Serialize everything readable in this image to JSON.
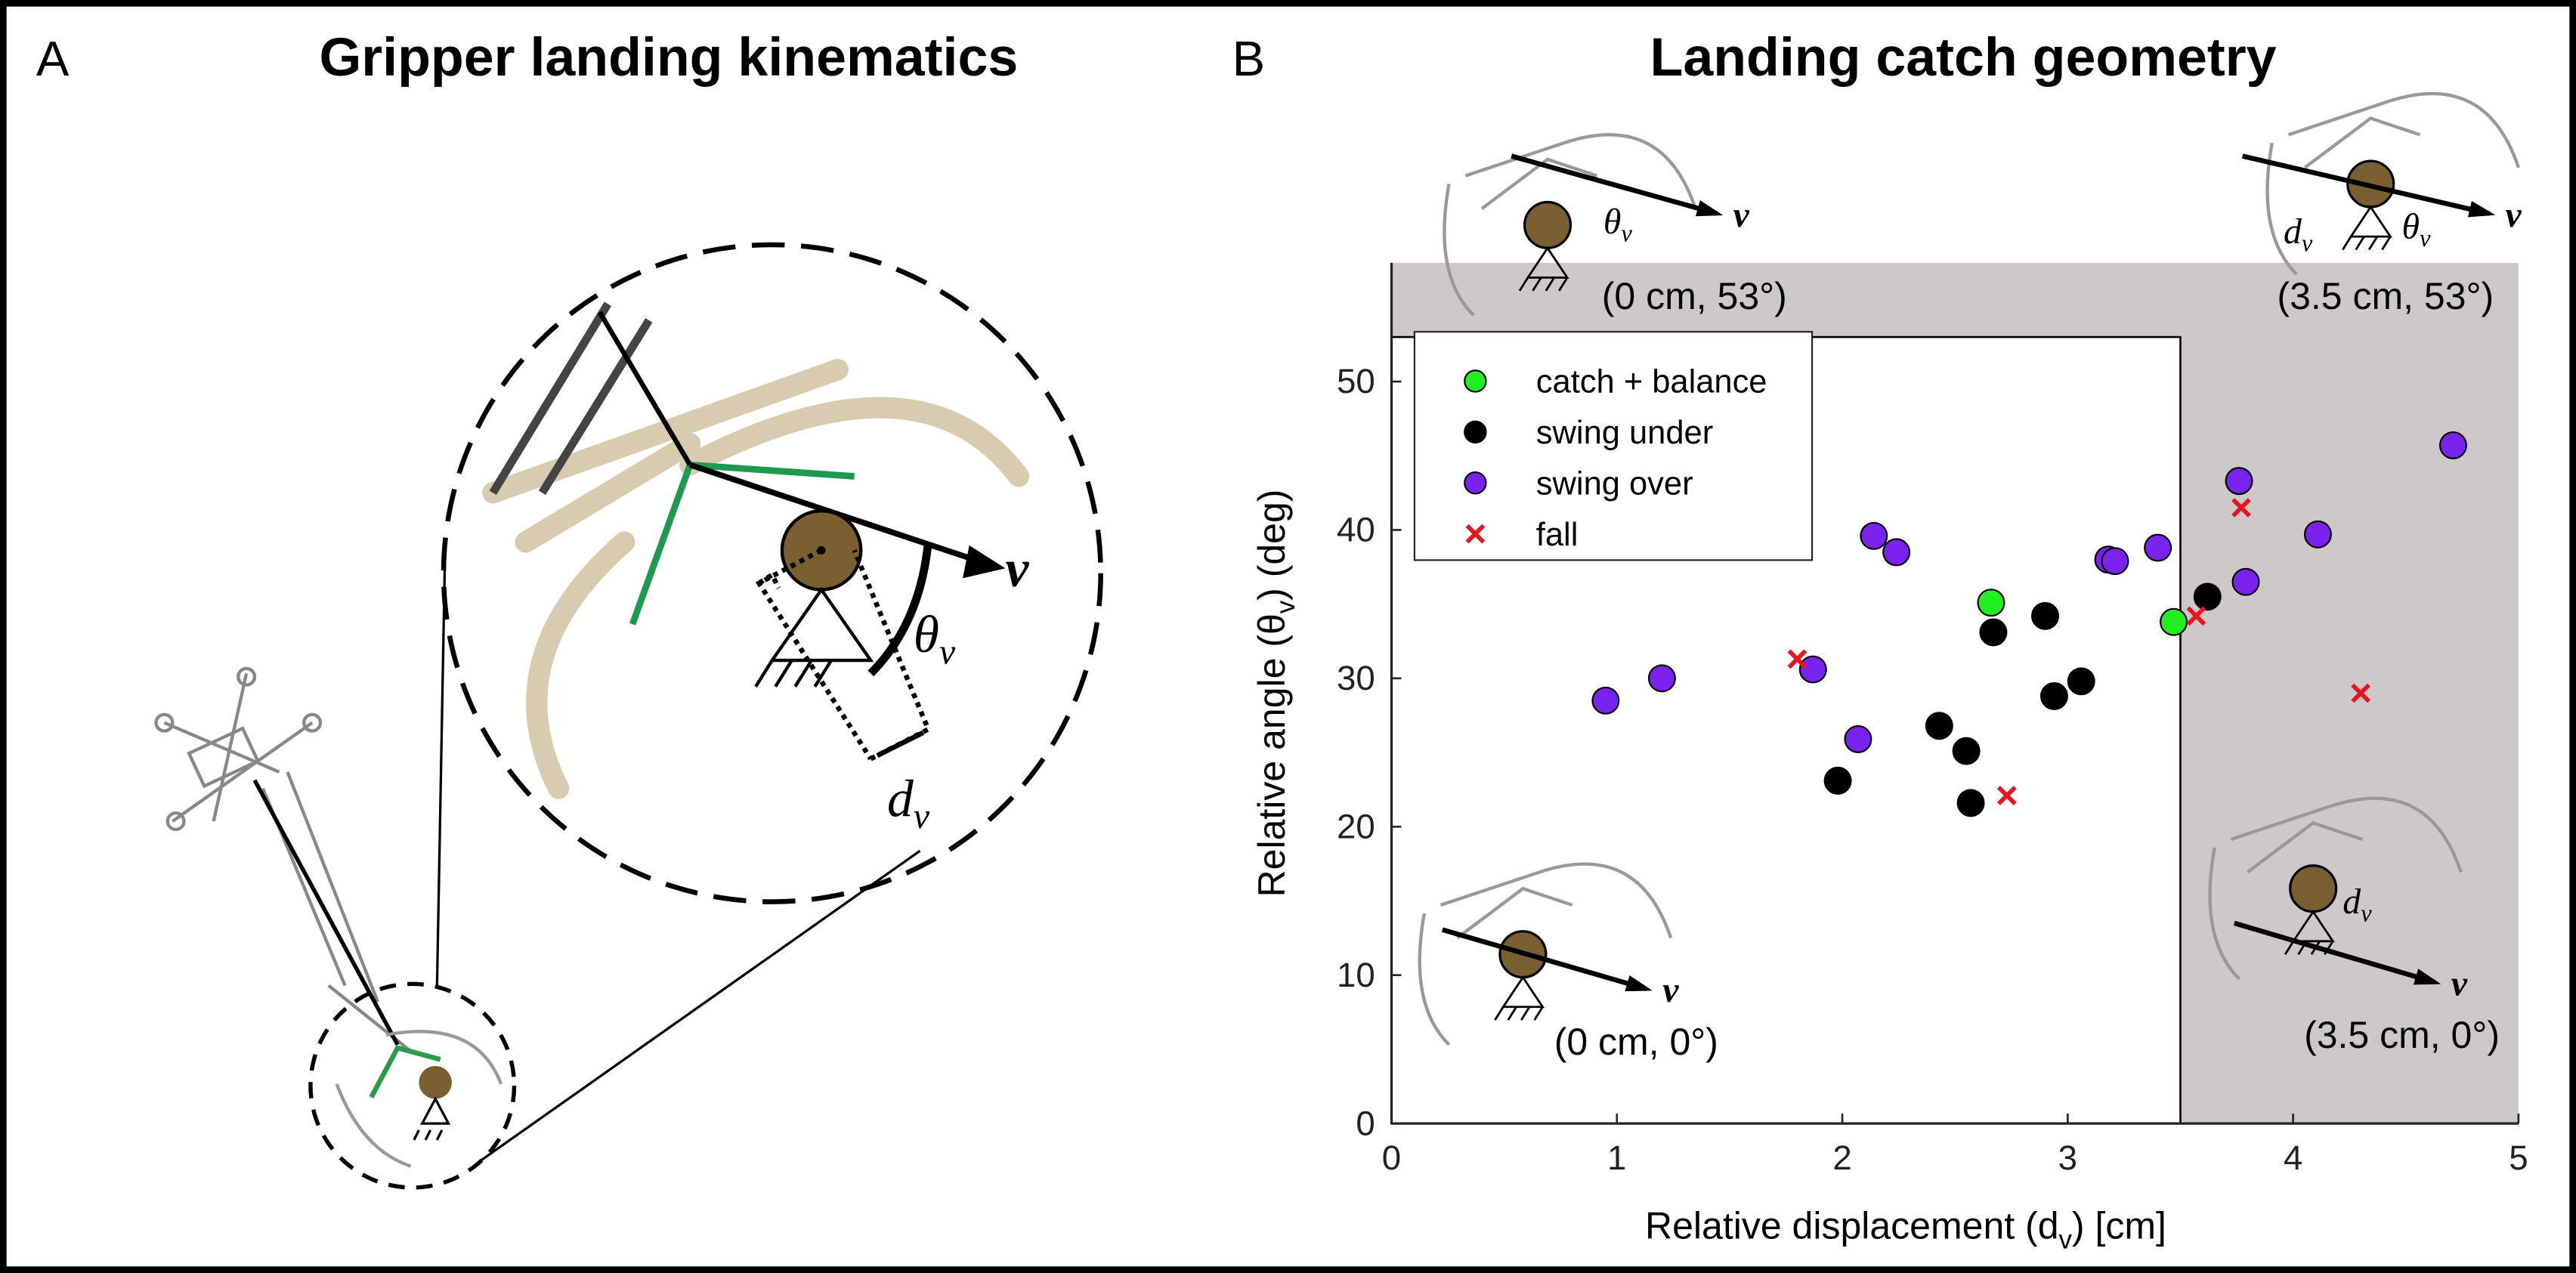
{
  "panel_a": {
    "label": "A",
    "title": "Gripper landing kinematics"
  },
  "symbols": {
    "velocity": "v",
    "angle": [
      "θ",
      "v"
    ],
    "displacement": [
      "d",
      "v"
    ]
  },
  "chart_data": {
    "type": "scatter",
    "label": "B",
    "title": "Landing catch geometry",
    "x_label": [
      "Relative displacement (d",
      "v",
      ") [cm]"
    ],
    "y_label": [
      "Relative angle (θ",
      "v",
      ") (deg)"
    ],
    "xlim": [
      0,
      5
    ],
    "ylim": [
      0,
      58
    ],
    "xticks": [
      0,
      1,
      2,
      3,
      4,
      5
    ],
    "yticks": [
      0,
      10,
      20,
      30,
      40,
      50
    ],
    "legend": "upper left",
    "shaded_region": {
      "xmax": 3.5,
      "ymax": 53,
      "color": "#cdc9c9"
    },
    "annotations": [
      "(0 cm, 53°)",
      "(3.5 cm, 53°)",
      "(0 cm, 0°)",
      "(3.5 cm, 0°)"
    ],
    "series": [
      {
        "name": "catch + balance",
        "color": "#22ee22",
        "marker": "o",
        "x": [
          2.66,
          3.47
        ],
        "values": [
          35.1,
          33.8
        ]
      },
      {
        "name": "swing under",
        "color": "#000000",
        "marker": "o",
        "x": [
          2.67,
          2.9,
          1.98,
          2.43,
          2.55,
          2.57,
          2.94,
          3.06,
          3.62
        ],
        "values": [
          33.1,
          34.2,
          23.1,
          26.8,
          25.1,
          21.6,
          28.8,
          29.8,
          35.5
        ]
      },
      {
        "name": "swing over",
        "color": "#7a22ee",
        "marker": "o",
        "x": [
          0.95,
          1.2,
          1.87,
          2.07,
          2.14,
          2.24,
          3.18,
          3.21,
          3.4,
          3.79,
          3.76,
          4.11,
          4.71
        ],
        "values": [
          28.5,
          30.0,
          30.6,
          25.9,
          39.6,
          38.5,
          38.0,
          37.9,
          38.8,
          36.5,
          43.3,
          39.7,
          45.7
        ]
      },
      {
        "name": "fall",
        "color": "#e8141e",
        "marker": "x",
        "x": [
          1.8,
          2.73,
          3.57,
          3.77,
          4.3
        ],
        "values": [
          31.3,
          22.1,
          34.2,
          41.5,
          29.0
        ]
      }
    ]
  }
}
